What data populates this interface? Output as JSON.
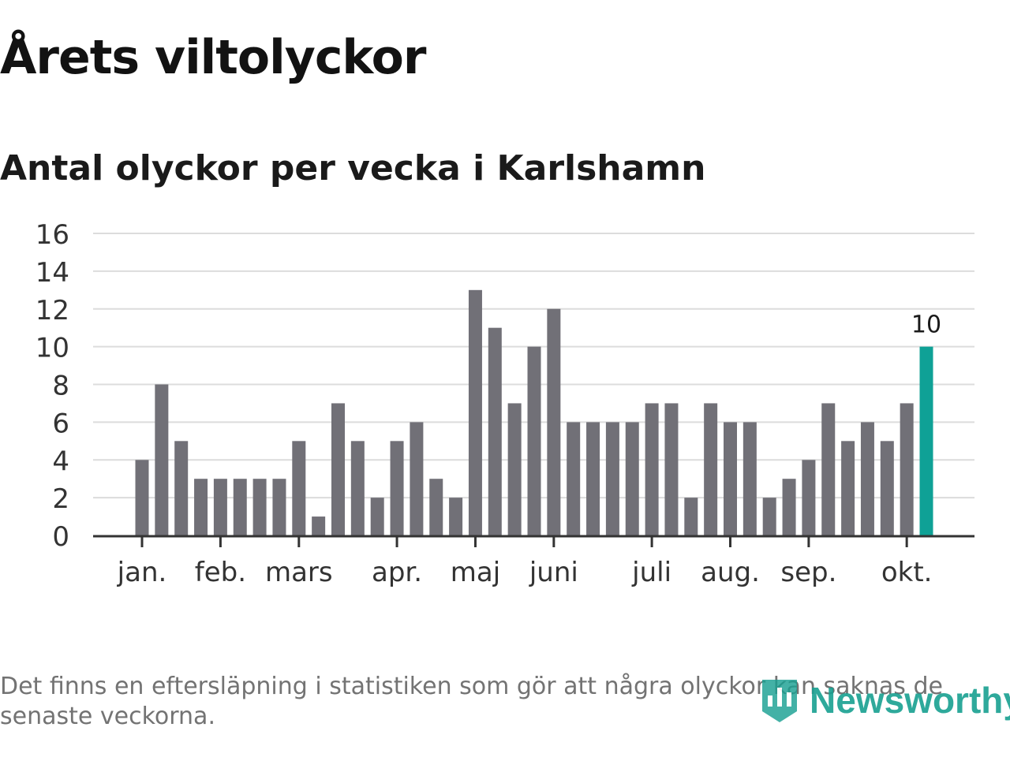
{
  "header": {
    "title": "Årets viltolyckor",
    "subtitle": "Antal olyckor per vecka i Karlshamn"
  },
  "footer": {
    "note": "Det finns en eftersläpning i statistiken som gör att några olyckor kan saknas de senaste veckorna.",
    "logo_text": "Newsworthy",
    "logo_icon": "bar-chart-icon"
  },
  "colors": {
    "bar": "#717077",
    "highlight": "#0fa196",
    "grid": "#dcdcdc",
    "axis": "#333333",
    "logo": "#18a091"
  },
  "chart_data": {
    "type": "bar",
    "x": [
      1,
      2,
      3,
      4,
      5,
      6,
      7,
      8,
      9,
      10,
      11,
      12,
      13,
      14,
      15,
      16,
      17,
      18,
      19,
      20,
      21,
      22,
      23,
      24,
      25,
      26,
      27,
      28,
      29,
      30,
      31,
      32,
      33,
      34,
      35,
      36,
      37,
      38,
      39,
      40,
      41
    ],
    "values": [
      4,
      8,
      5,
      3,
      3,
      3,
      3,
      3,
      5,
      1,
      7,
      5,
      2,
      5,
      6,
      3,
      2,
      13,
      11,
      7,
      10,
      12,
      6,
      6,
      6,
      6,
      7,
      7,
      2,
      7,
      6,
      6,
      2,
      3,
      4,
      7,
      5,
      6,
      5,
      7,
      10
    ],
    "highlight_index": 40,
    "highlight_label": "10",
    "ylim": [
      0,
      16
    ],
    "yticks": [
      0,
      2,
      4,
      6,
      8,
      10,
      12,
      14,
      16
    ],
    "month_labels": [
      {
        "label": "jan.",
        "x": 1
      },
      {
        "label": "feb.",
        "x": 5
      },
      {
        "label": "mars",
        "x": 9
      },
      {
        "label": "apr.",
        "x": 14
      },
      {
        "label": "maj",
        "x": 18
      },
      {
        "label": "juni",
        "x": 22
      },
      {
        "label": "juli",
        "x": 27
      },
      {
        "label": "aug.",
        "x": 31
      },
      {
        "label": "sep.",
        "x": 35
      },
      {
        "label": "okt.",
        "x": 40
      }
    ],
    "grid": true,
    "legend": "none"
  }
}
